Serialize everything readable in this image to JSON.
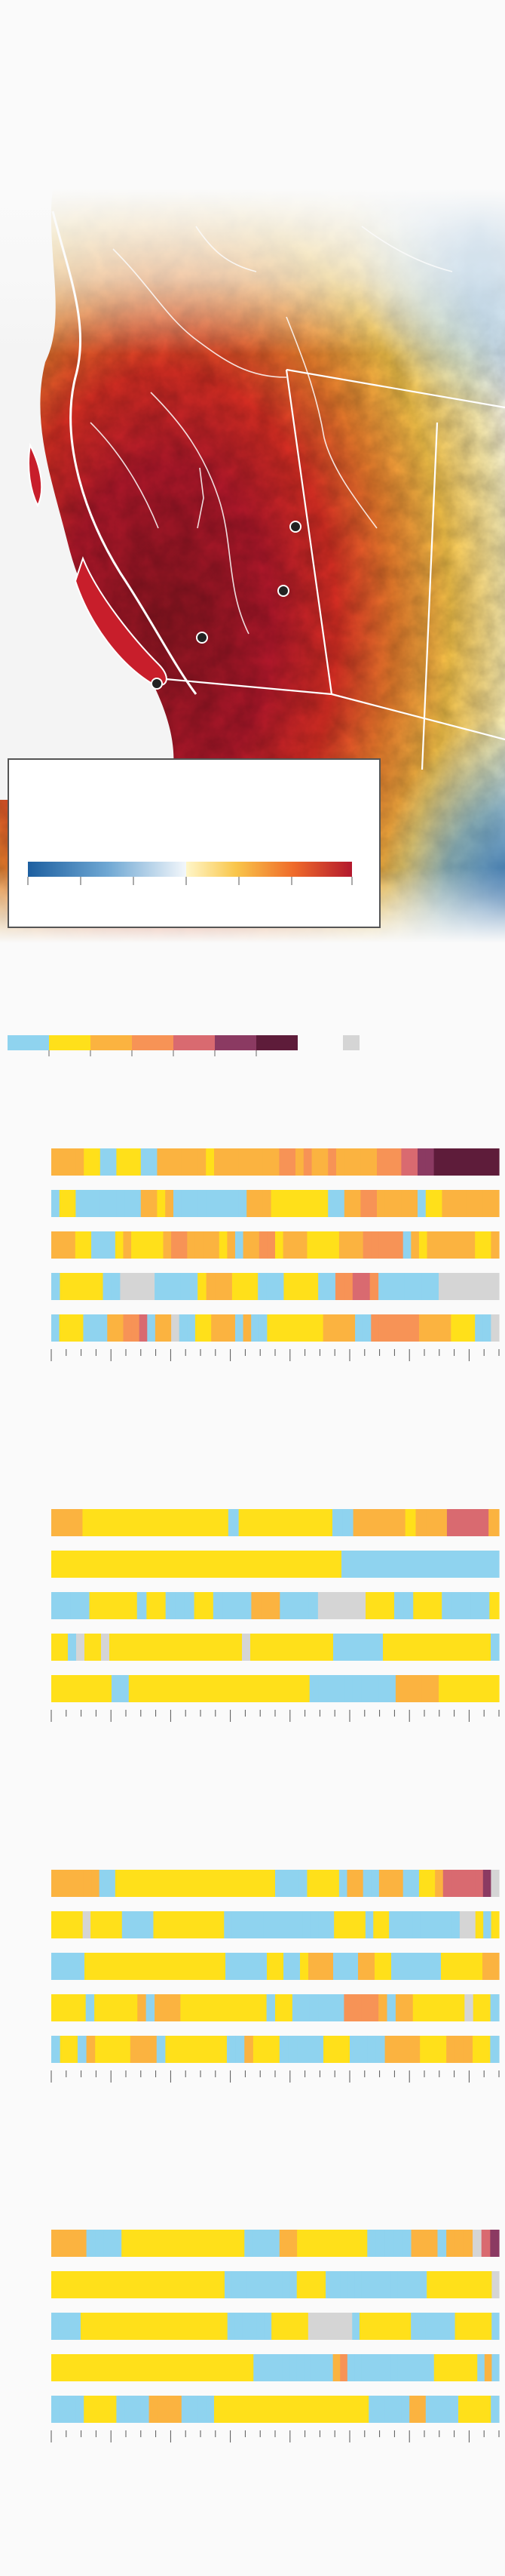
{
  "colors": {
    "temp_scale": [
      "#1d5fa0",
      "#3f86bf",
      "#9cc7e2",
      "#f3f7fb",
      "#fff1b3",
      "#f9c64a",
      "#ef7f2d",
      "#dd2f24",
      "#b3182d"
    ],
    "aqi": {
      "good": "#8fd3ef",
      "moderate": "#ffe01a",
      "usg": "#fbb340",
      "unhealthy": "#f79356",
      "very_unhealthy": "#d96a70",
      "hazardous": "#8b3a62",
      "hazardous_plus": "#5e1c3a",
      "no_data": "#d5d5d5"
    }
  },
  "strip_palette_order": [
    "good",
    "moderate",
    "usg",
    "unhealthy",
    "very_unhealthy",
    "hazardous",
    "hazardous_plus",
    "no_data"
  ],
  "panels": [
    {
      "rows": [
        "ccccbbaabbbaaccccccbccccccccddcdccdcccccdddeeffgggggggg",
        "abbaaaaaaaaccbcaaaaaaaaacccbbbbbbbaaccddcccccabbccccccc",
        "cccbbaaabcbbbbcddccccbcaccddbcccbbbbcccdddddacbccccccbbc",
        "abbbbbaahhhhaaaaabcccbbbaaabbbbaaddeedaaaaaaahhhhhhh",
        "abbbaaaccddeacchaabbcccacaabbbbbbbccccaaddddddccccbbbaah"
      ]
    },
    {
      "rows": [
        "cccbbbbbbbbbbbbbbabbbbbbbbbaacccccbccceeeec",
        "bbbbbbbbbbbbbbbbbbbbbbbbbbbbbbbbbbbaaaaaaaaaaaaaaaaaaa",
        "aaaabbbbbabbaaabbaaaacccaaaahhhhhbbbaabbbaaaaab",
        "bbahbbhbbbbbbbbbbbbbbbbhbbbbbbbbbbaaaaaabbbbbbbbbbbbba",
        "bbbbbbbaabbbbbbbbbbbbbbbbbbbbbaaaaaaaaaacccccbbbbbbb"
      ]
    },
    {
      "rows": [
        "ccccccaabbbbbbbbbbbbbbbbbbbbaaaabbbbaccaacccaabbceeeeefh",
        "bbbbhbbbbaaaabbbbbbbbbaaaaaaaaaaaaaabbbbabbaaaaaaaaahhbab",
        "aaaabbbbbbbbbbbbbbbbbaaaaabbaabcccaaaccbbaaaaaabbbbbcc",
        "bbbbabbbbbcacccbbbbbbbbbbabbaaaaaaddddcaccbbbbbbhbba",
        "abbacbbbbcccabbbbbbbaacbbbaaaaabbbaaaaccccbbbcccbba"
      ]
    },
    {
      "rows": [
        "ccccaaaabbbbbbbbbbbbbbaaaaccbbbbbbbbaaaaacccaccchef",
        "bbbbbbbbbbbbbbbbbbbbbbbbaaaaaaaaaabbbbaaaaaaaaaaaaaabbbbbbbbbh",
        "aaaabbbbbbbbbbbbbbbbbbbbaaaaaabbbbbhhhhhhabbbbbbbaaaaaabbbbba",
        "bbbbbbbbbbbbbbbbbbbbbbbbbbbbaaaaaaaaaaacdaaaaaaaaaaaabbbbbbaca",
        "aaaabbbbaaaaccccaaaabbbbbbbbbbbbbbbbbbbaaaaaccaaaabbbba"
      ]
    }
  ]
}
